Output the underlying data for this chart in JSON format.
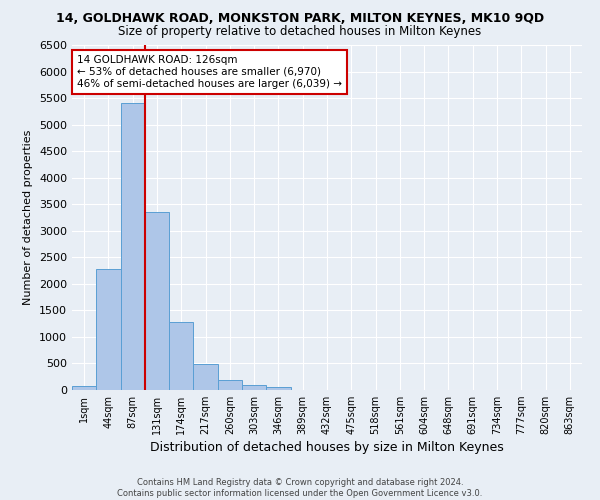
{
  "title": "14, GOLDHAWK ROAD, MONKSTON PARK, MILTON KEYNES, MK10 9QD",
  "subtitle": "Size of property relative to detached houses in Milton Keynes",
  "xlabel": "Distribution of detached houses by size in Milton Keynes",
  "ylabel": "Number of detached properties",
  "footer_line1": "Contains HM Land Registry data © Crown copyright and database right 2024.",
  "footer_line2": "Contains public sector information licensed under the Open Government Licence v3.0.",
  "bin_labels": [
    "1sqm",
    "44sqm",
    "87sqm",
    "131sqm",
    "174sqm",
    "217sqm",
    "260sqm",
    "303sqm",
    "346sqm",
    "389sqm",
    "432sqm",
    "475sqm",
    "518sqm",
    "561sqm",
    "604sqm",
    "648sqm",
    "691sqm",
    "734sqm",
    "777sqm",
    "820sqm",
    "863sqm"
  ],
  "bar_values": [
    75,
    2280,
    5400,
    3360,
    1290,
    490,
    195,
    95,
    55,
    0,
    0,
    0,
    0,
    0,
    0,
    0,
    0,
    0,
    0,
    0,
    0
  ],
  "bar_color": "#aec6e8",
  "bar_edge_color": "#5a9fd4",
  "property_line_color": "#cc0000",
  "annotation_text": "14 GOLDHAWK ROAD: 126sqm\n← 53% of detached houses are smaller (6,970)\n46% of semi-detached houses are larger (6,039) →",
  "annotation_box_color": "#ffffff",
  "annotation_box_edge_color": "#cc0000",
  "ylim": [
    0,
    6500
  ],
  "yticks": [
    0,
    500,
    1000,
    1500,
    2000,
    2500,
    3000,
    3500,
    4000,
    4500,
    5000,
    5500,
    6000,
    6500
  ],
  "background_color": "#e8eef5",
  "grid_color": "#ffffff",
  "title_fontsize": 9,
  "subtitle_fontsize": 8.5,
  "xlabel_fontsize": 9,
  "ylabel_fontsize": 8,
  "annotation_fontsize": 7.5,
  "footer_fontsize": 6
}
